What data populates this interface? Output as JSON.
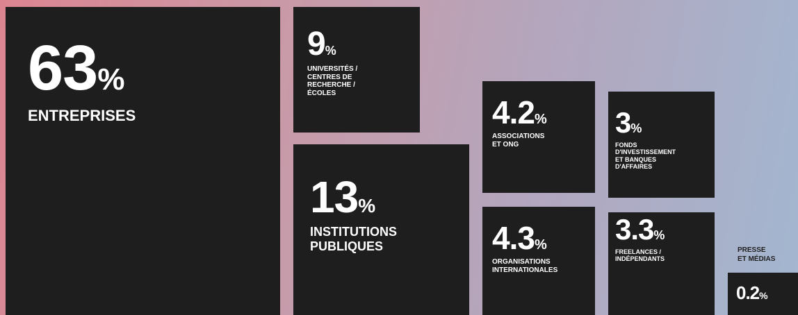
{
  "unit": "%",
  "items": [
    {
      "value": "63",
      "label": [
        "ENTREPRISES"
      ]
    },
    {
      "value": "9",
      "label": [
        "UNIVERSITÉS /",
        "CENTRES DE",
        "RECHERCHE /",
        "ÉCOLES"
      ]
    },
    {
      "value": "13",
      "label": [
        "INSTITUTIONS",
        "PUBLIQUES"
      ]
    },
    {
      "value": "4.2",
      "label": [
        "ASSOCIATIONS",
        "ET ONG"
      ]
    },
    {
      "value": "4.3",
      "label": [
        "ORGANISATIONS",
        "INTERNATIONALES"
      ]
    },
    {
      "value": "3",
      "label": [
        "FONDS",
        "D'INVESTISSEMENT",
        "ET BANQUES",
        "D'AFFAIRES"
      ]
    },
    {
      "value": "3.3",
      "label": [
        "FREELANCES /",
        "INDÉPENDANTS"
      ]
    },
    {
      "value": "0.2",
      "label": [
        "PRESSE",
        "ET MÉDIAS"
      ]
    }
  ]
}
